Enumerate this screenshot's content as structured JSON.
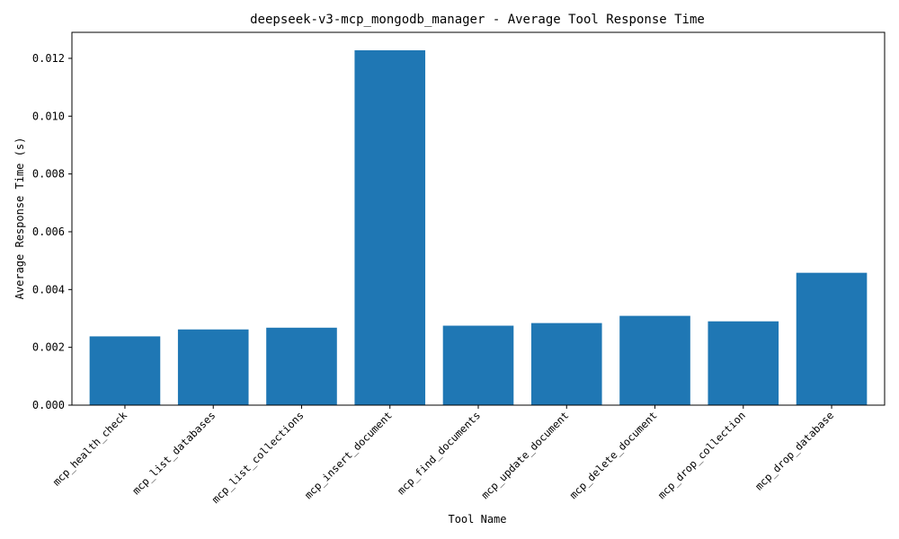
{
  "chart_data": {
    "type": "bar",
    "title": "deepseek-v3-mcp_mongodb_manager - Average Tool Response Time",
    "xlabel": "Tool Name",
    "ylabel": "Average Response Time (s)",
    "ylim": [
      0,
      0.0129
    ],
    "yticks": [
      "0.000",
      "0.002",
      "0.004",
      "0.006",
      "0.008",
      "0.010",
      "0.012"
    ],
    "grid": false,
    "bar_color": "#1f77b4",
    "categories": [
      "mcp_health_check",
      "mcp_list_databases",
      "mcp_list_collections",
      "mcp_insert_document",
      "mcp_find_documents",
      "mcp_update_document",
      "mcp_delete_document",
      "mcp_drop_collection",
      "mcp_drop_database"
    ],
    "values": [
      0.00238,
      0.00262,
      0.00268,
      0.01228,
      0.00275,
      0.00284,
      0.00309,
      0.0029,
      0.00458
    ]
  }
}
